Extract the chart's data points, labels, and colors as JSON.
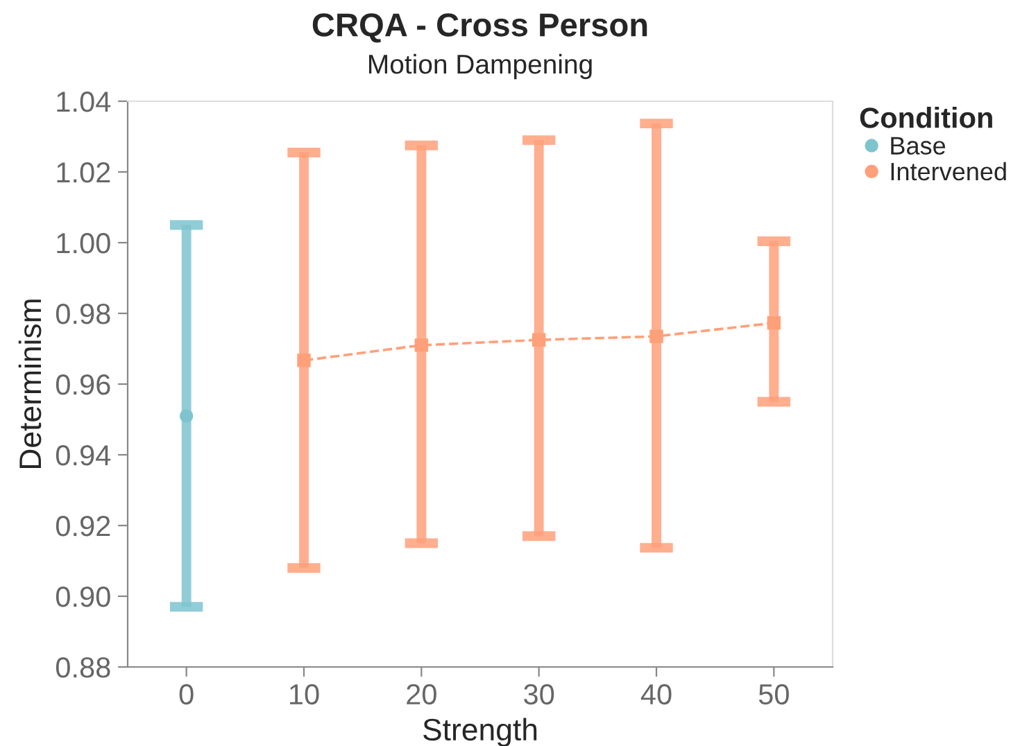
{
  "chart_data": {
    "type": "line",
    "title": "CRQA - Cross Person",
    "subtitle": "Motion Dampening",
    "xlabel": "Strength",
    "ylabel": "Determinism",
    "legend_title": "Condition",
    "legend": "top right",
    "series": [
      {
        "name": "Base",
        "color": "#7ec4cf",
        "x": [
          0
        ],
        "values": [
          0.951
        ],
        "errors": [
          [
            0.897,
            1.005
          ]
        ],
        "marker": "circle"
      },
      {
        "name": "Intervened",
        "color": "#ffa07a",
        "x": [
          10,
          20,
          30,
          40,
          50
        ],
        "values": [
          0.9667,
          0.971,
          0.9725,
          0.9735,
          0.9773
        ],
        "errors": [
          [
            0.908,
            1.0255
          ],
          [
            0.915,
            1.0275
          ],
          [
            0.917,
            1.029
          ],
          [
            0.9137,
            1.0337
          ],
          [
            0.955,
            1.0004
          ]
        ],
        "marker": "square",
        "line_style": "dashed"
      }
    ],
    "xlim": [
      -5,
      55
    ],
    "xticks": [
      0,
      10,
      20,
      30,
      40,
      50
    ],
    "ylim": [
      0.88,
      1.04
    ],
    "yticks": [
      {
        "value": 0.88,
        "label": "0.88"
      },
      {
        "value": 0.9,
        "label": "0.90"
      },
      {
        "value": 0.92,
        "label": "0.92"
      },
      {
        "value": 0.94,
        "label": "0.94"
      },
      {
        "value": 0.96,
        "label": "0.96"
      },
      {
        "value": 0.98,
        "label": "0.98"
      },
      {
        "value": 1.0,
        "label": "1.00"
      },
      {
        "value": 1.02,
        "label": "1.02"
      },
      {
        "value": 1.04,
        "label": "1.04"
      }
    ],
    "grid": false
  }
}
